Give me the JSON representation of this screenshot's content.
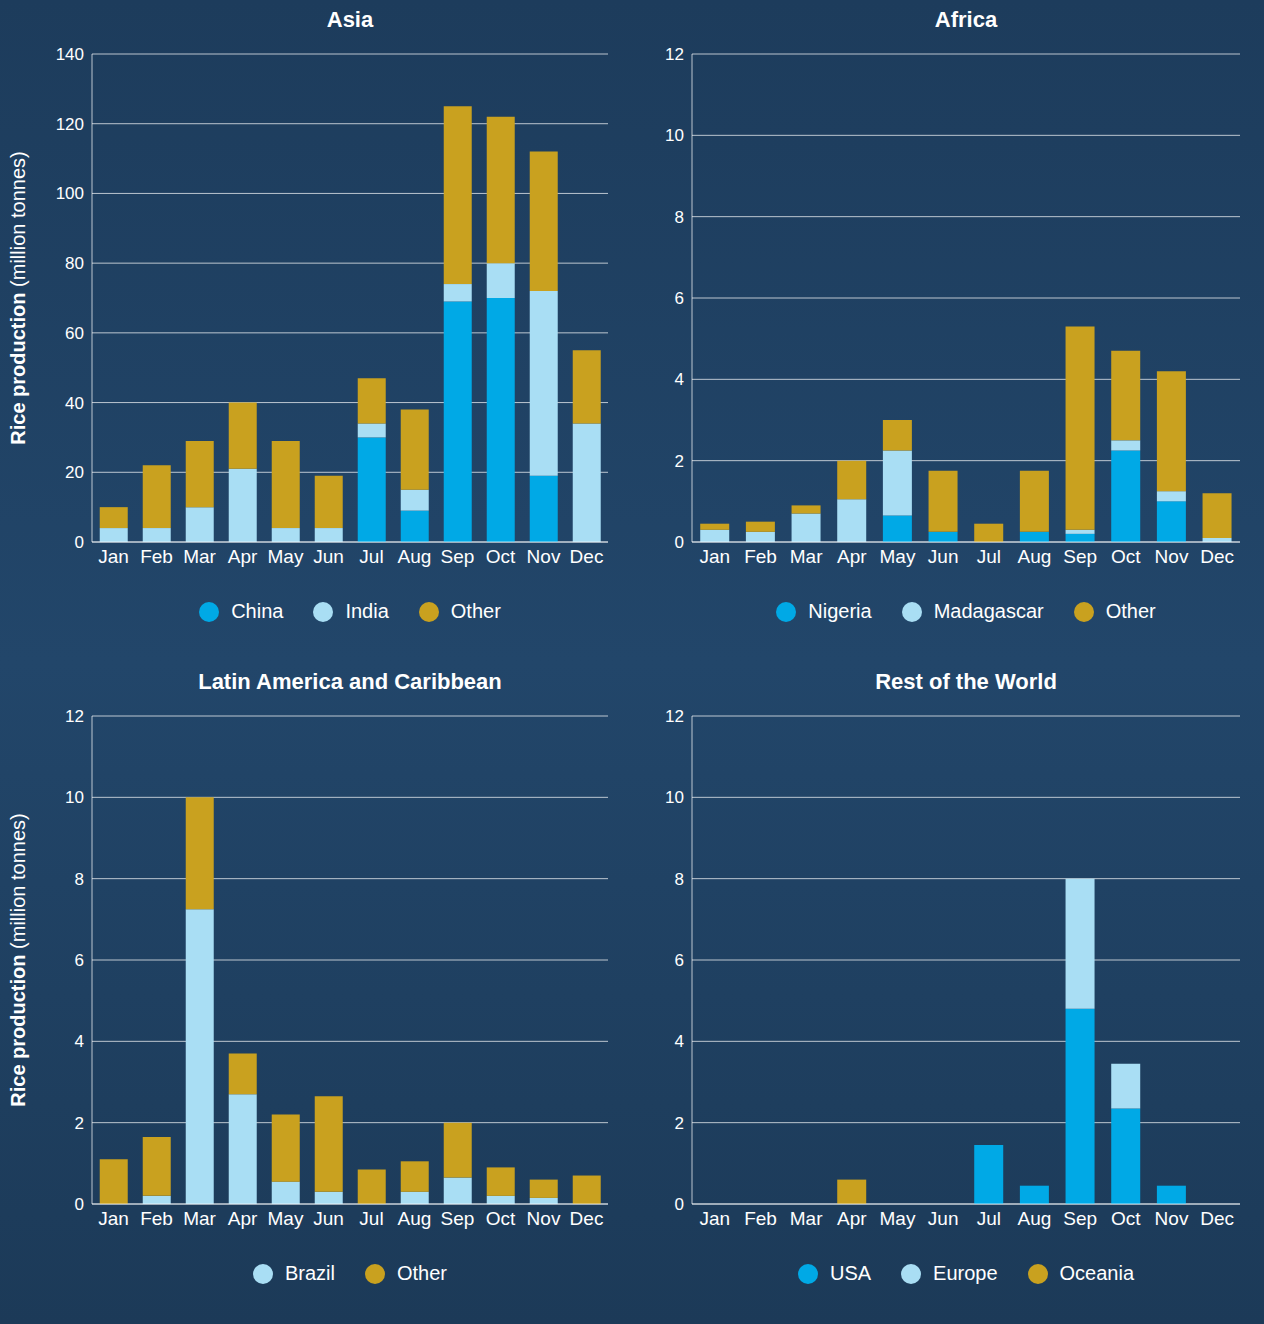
{
  "chart_data": [
    {
      "type": "bar",
      "title": "Asia",
      "ylabel": "Rice production (million tonnes)",
      "stacked": true,
      "grid": true,
      "legend": "bottom",
      "categories": [
        "Jan",
        "Feb",
        "Mar",
        "Apr",
        "May",
        "Jun",
        "Jul",
        "Aug",
        "Sep",
        "Oct",
        "Nov",
        "Dec"
      ],
      "ylim": [
        0,
        140
      ],
      "yticks": [
        0,
        20,
        40,
        60,
        80,
        100,
        120,
        140
      ],
      "series": [
        {
          "name": "China",
          "color": "#00a9e6",
          "values": [
            0,
            0,
            0,
            0,
            0,
            0,
            30,
            9,
            69,
            70,
            19,
            0
          ]
        },
        {
          "name": "India",
          "color": "#a9def4",
          "values": [
            4,
            4,
            10,
            21,
            4,
            4,
            4,
            6,
            5,
            10,
            53,
            34
          ]
        },
        {
          "name": "Other",
          "color": "#c9a11f",
          "values": [
            6,
            18,
            19,
            19,
            25,
            15,
            13,
            23,
            51,
            42,
            40,
            21
          ]
        }
      ]
    },
    {
      "type": "bar",
      "title": "Africa",
      "stacked": true,
      "grid": true,
      "legend": "bottom",
      "categories": [
        "Jan",
        "Feb",
        "Mar",
        "Apr",
        "May",
        "Jun",
        "Jul",
        "Aug",
        "Sep",
        "Oct",
        "Nov",
        "Dec"
      ],
      "ylim": [
        0,
        12
      ],
      "yticks": [
        0,
        2,
        4,
        6,
        8,
        10,
        12
      ],
      "series": [
        {
          "name": "Nigeria",
          "color": "#00a9e6",
          "values": [
            0,
            0,
            0,
            0,
            0.65,
            0.25,
            0,
            0.25,
            0.2,
            2.25,
            1.0,
            0
          ]
        },
        {
          "name": "Madagascar",
          "color": "#a9def4",
          "values": [
            0.3,
            0.25,
            0.7,
            1.05,
            1.6,
            0,
            0,
            0,
            0.1,
            0.25,
            0.25,
            0.1
          ]
        },
        {
          "name": "Other",
          "color": "#c9a11f",
          "values": [
            0.15,
            0.25,
            0.2,
            0.95,
            0.75,
            1.5,
            0.45,
            1.5,
            5.0,
            2.2,
            2.95,
            1.1
          ]
        }
      ]
    },
    {
      "type": "bar",
      "title": "Latin America and Caribbean",
      "ylabel": "Rice production (million tonnes)",
      "stacked": true,
      "grid": true,
      "legend": "bottom",
      "categories": [
        "Jan",
        "Feb",
        "Mar",
        "Apr",
        "May",
        "Jun",
        "Jul",
        "Aug",
        "Sep",
        "Oct",
        "Nov",
        "Dec"
      ],
      "ylim": [
        0,
        12
      ],
      "yticks": [
        0,
        2,
        4,
        6,
        8,
        10,
        12
      ],
      "series": [
        {
          "name": "Brazil",
          "color": "#a9def4",
          "values": [
            0,
            0.2,
            7.25,
            2.7,
            0.55,
            0.3,
            0,
            0.3,
            0.65,
            0.2,
            0.15,
            0
          ]
        },
        {
          "name": "Other",
          "color": "#c9a11f",
          "values": [
            1.1,
            1.45,
            2.75,
            1.0,
            1.65,
            2.35,
            0.85,
            0.75,
            1.35,
            0.7,
            0.45,
            0.7
          ]
        }
      ]
    },
    {
      "type": "bar",
      "title": "Rest of the World",
      "stacked": true,
      "grid": true,
      "legend": "bottom",
      "categories": [
        "Jan",
        "Feb",
        "Mar",
        "Apr",
        "May",
        "Jun",
        "Jul",
        "Aug",
        "Sep",
        "Oct",
        "Nov",
        "Dec"
      ],
      "ylim": [
        0,
        12
      ],
      "yticks": [
        0,
        2,
        4,
        6,
        8,
        10,
        12
      ],
      "series": [
        {
          "name": "USA",
          "color": "#00a9e6",
          "values": [
            0,
            0,
            0,
            0,
            0,
            0,
            1.45,
            0.45,
            4.8,
            2.35,
            0.45,
            0
          ]
        },
        {
          "name": "Europe",
          "color": "#a9def4",
          "values": [
            0,
            0,
            0,
            0,
            0,
            0,
            0,
            0,
            3.2,
            1.1,
            0,
            0
          ]
        },
        {
          "name": "Oceania",
          "color": "#c9a11f",
          "values": [
            0,
            0,
            0,
            0.6,
            0,
            0,
            0,
            0,
            0,
            0,
            0,
            0
          ]
        }
      ]
    }
  ]
}
